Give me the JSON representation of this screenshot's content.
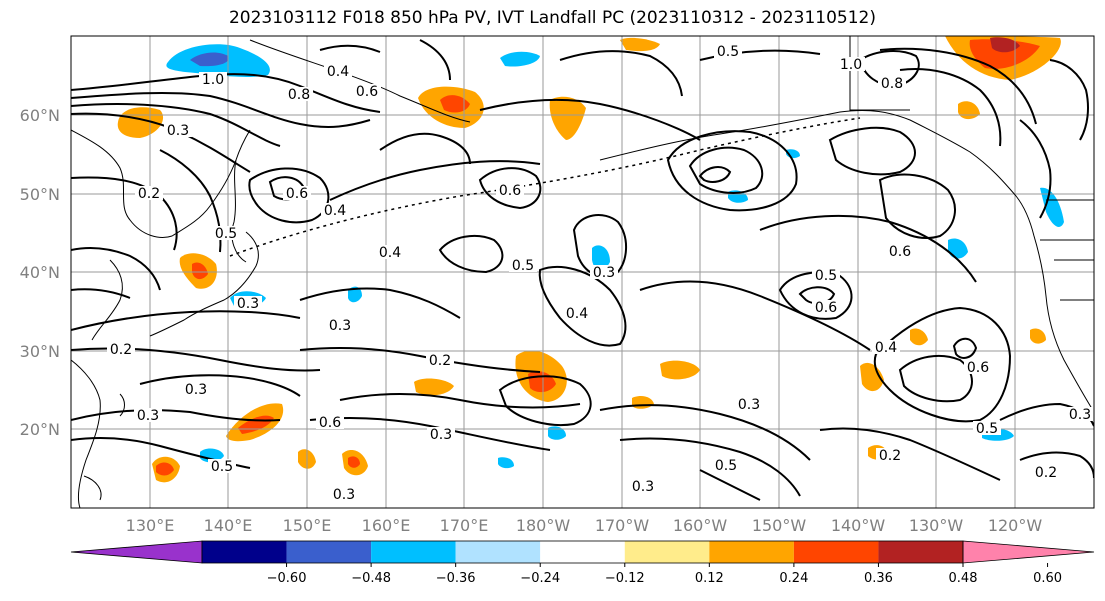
{
  "title": "2023103112 F018 850 hPa PV, IVT Landfall PC (2023110312 - 2023110512)",
  "lat_labels": [
    "60°N",
    "50°N",
    "40°N",
    "30°N",
    "20°N"
  ],
  "lon_labels": [
    "130°E",
    "140°E",
    "150°E",
    "160°E",
    "170°E",
    "180°W",
    "170°W",
    "160°W",
    "150°W",
    "140°W",
    "130°W",
    "120°W"
  ],
  "colorbar": {
    "ticks": [
      "−0.60",
      "−0.48",
      "−0.36",
      "−0.24",
      "−0.12",
      "0.12",
      "0.24",
      "0.36",
      "0.48",
      "0.60"
    ],
    "colors": [
      "#9932cc",
      "#00008b",
      "#3a5fcd",
      "#00bfff",
      "#b0e2ff",
      "#ffffff",
      "#ffec8b",
      "#ffa500",
      "#ff4500",
      "#b22222",
      "#ff82ab"
    ]
  },
  "contour_labels": [
    "0.5",
    "1.0",
    "0.4",
    "0.8",
    "0.6",
    "0.3",
    "0.2",
    "0.5",
    "0.4",
    "0.6",
    "0.3",
    "0.4",
    "0.3",
    "0.2",
    "0.3",
    "0.5",
    "0.6",
    "0.5",
    "0.6",
    "0.4",
    "0.3",
    "0.2",
    "0.3",
    "0.3",
    "0.3",
    "0.5",
    "0.2",
    "0.3",
    "0.6",
    "0.5",
    "1.0",
    "0.8",
    "0.6",
    "0.5",
    "0.2",
    "0.3",
    "0.4",
    "0.6",
    "0.3"
  ]
}
